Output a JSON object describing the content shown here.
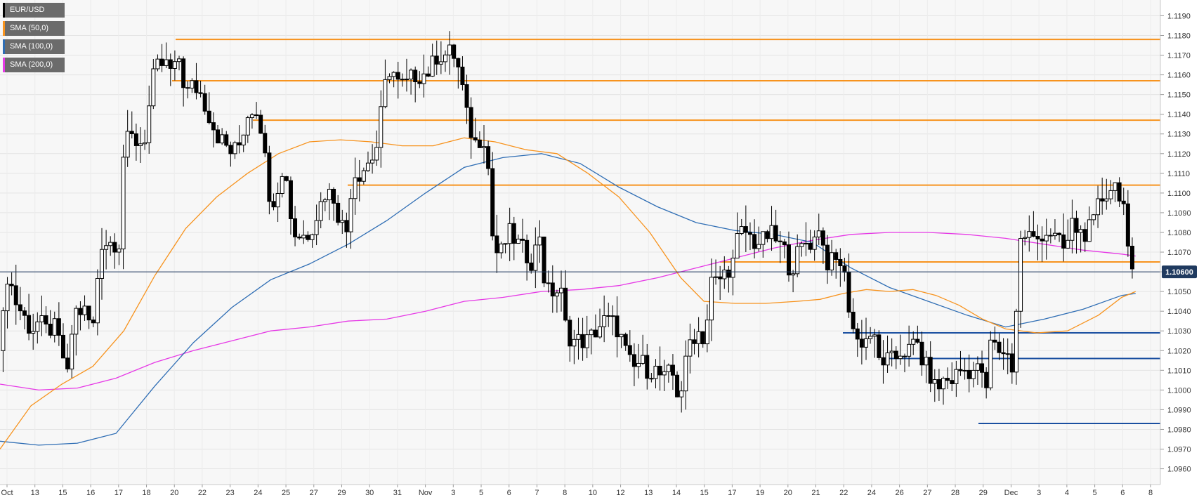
{
  "chart_data": {
    "type": "candlestick",
    "symbol": "EUR/USD",
    "y_range": [
      1.0952,
      1.1198
    ],
    "y_ticks": [
      "1.1190",
      "1.1180",
      "1.1170",
      "1.1160",
      "1.1150",
      "1.1140",
      "1.1130",
      "1.1120",
      "1.1110",
      "1.1100",
      "1.1090",
      "1.1080",
      "1.1070",
      "1.1060",
      "1.1050",
      "1.1040",
      "1.1030",
      "1.1020",
      "1.1010",
      "1.1000",
      "1.0990",
      "1.0980",
      "1.0970",
      "1.0960"
    ],
    "x_ticks": [
      "Oct",
      "13",
      "15",
      "16",
      "17",
      "18",
      "20",
      "22",
      "23",
      "24",
      "25",
      "27",
      "29",
      "30",
      "31",
      "Nov",
      "3",
      "5",
      "6",
      "7",
      "8",
      "10",
      "12",
      "13",
      "14",
      "15",
      "17",
      "19",
      "20",
      "21",
      "22",
      "24",
      "26",
      "27",
      "28",
      "29",
      "Dec",
      "3",
      "4",
      "5",
      "6",
      "8"
    ],
    "current_price": "1.10600",
    "legend": [
      {
        "label": "EUR/USD",
        "color": "#000000"
      },
      {
        "label": "SMA (50,0)",
        "color": "#f7931e"
      },
      {
        "label": "SMA (100,0)",
        "color": "#2e6db4"
      },
      {
        "label": "SMA (200,0)",
        "color": "#e639e6"
      }
    ],
    "resistance_levels": [
      1.1178,
      1.1157,
      1.1137,
      1.1104,
      1.1065
    ],
    "support_levels": [
      1.1029,
      1.1016,
      1.0983
    ],
    "close_path": [
      [
        0,
        1.102
      ],
      [
        10,
        1.106
      ],
      [
        20,
        1.1045
      ],
      [
        30,
        1.1038
      ],
      [
        40,
        1.103
      ],
      [
        50,
        1.1035
      ],
      [
        60,
        1.103
      ],
      [
        70,
        1.1032
      ],
      [
        80,
        1.102
      ],
      [
        88,
        1.1005
      ],
      [
        95,
        1.104
      ],
      [
        110,
        1.104
      ],
      [
        120,
        1.103
      ],
      [
        130,
        1.1075
      ],
      [
        145,
        1.1075
      ],
      [
        155,
        1.1075
      ],
      [
        160,
        1.1125
      ],
      [
        170,
        1.1128
      ],
      [
        180,
        1.1125
      ],
      [
        190,
        1.113
      ],
      [
        195,
        1.1155
      ],
      [
        205,
        1.1165
      ],
      [
        215,
        1.1165
      ],
      [
        225,
        1.116
      ],
      [
        230,
        1.1172
      ],
      [
        240,
        1.115
      ],
      [
        250,
        1.1155
      ],
      [
        260,
        1.115
      ],
      [
        270,
        1.114
      ],
      [
        280,
        1.113
      ],
      [
        290,
        1.1125
      ],
      [
        300,
        1.112
      ],
      [
        310,
        1.1125
      ],
      [
        320,
        1.114
      ],
      [
        330,
        1.1145
      ],
      [
        340,
        1.113
      ],
      [
        345,
        1.1105
      ],
      [
        352,
        1.1095
      ],
      [
        360,
        1.1105
      ],
      [
        370,
        1.111
      ],
      [
        378,
        1.108
      ],
      [
        390,
        1.1078
      ],
      [
        400,
        1.108
      ],
      [
        410,
        1.109
      ],
      [
        420,
        1.11
      ],
      [
        430,
        1.11
      ],
      [
        440,
        1.1085
      ],
      [
        450,
        1.108
      ],
      [
        455,
        1.111
      ],
      [
        465,
        1.111
      ],
      [
        475,
        1.1115
      ],
      [
        485,
        1.112
      ],
      [
        490,
        1.113
      ],
      [
        495,
        1.115
      ],
      [
        505,
        1.1165
      ],
      [
        515,
        1.1155
      ],
      [
        525,
        1.1155
      ],
      [
        535,
        1.116
      ],
      [
        545,
        1.116
      ],
      [
        555,
        1.1162
      ],
      [
        565,
        1.117
      ],
      [
        575,
        1.117
      ],
      [
        585,
        1.1172
      ],
      [
        595,
        1.116
      ],
      [
        605,
        1.1135
      ],
      [
        615,
        1.1125
      ],
      [
        625,
        1.113
      ],
      [
        632,
        1.111
      ],
      [
        638,
        1.107
      ],
      [
        648,
        1.107
      ],
      [
        658,
        1.108
      ],
      [
        668,
        1.1075
      ],
      [
        678,
        1.107
      ],
      [
        688,
        1.1065
      ],
      [
        698,
        1.108
      ],
      [
        705,
        1.105
      ],
      [
        715,
        1.105
      ],
      [
        725,
        1.105
      ],
      [
        732,
        1.103
      ],
      [
        740,
        1.1025
      ],
      [
        750,
        1.1025
      ],
      [
        760,
        1.1025
      ],
      [
        770,
        1.103
      ],
      [
        780,
        1.1035
      ],
      [
        790,
        1.1035
      ],
      [
        800,
        1.103
      ],
      [
        808,
        1.102
      ],
      [
        818,
        1.101
      ],
      [
        828,
        1.1015
      ],
      [
        838,
        1.101
      ],
      [
        848,
        1.101
      ],
      [
        858,
        1.1005
      ],
      [
        868,
        1.101
      ],
      [
        878,
        1.0995
      ],
      [
        885,
        1.101
      ],
      [
        892,
        1.1025
      ],
      [
        902,
        1.103
      ],
      [
        912,
        1.1025
      ],
      [
        918,
        1.1055
      ],
      [
        928,
        1.1055
      ],
      [
        938,
        1.106
      ],
      [
        948,
        1.1065
      ],
      [
        955,
        1.108
      ],
      [
        965,
        1.108
      ],
      [
        975,
        1.1075
      ],
      [
        985,
        1.1075
      ],
      [
        995,
        1.108
      ],
      [
        1005,
        1.1075
      ],
      [
        1015,
        1.107
      ],
      [
        1022,
        1.106
      ],
      [
        1032,
        1.107
      ],
      [
        1042,
        1.1075
      ],
      [
        1052,
        1.1075
      ],
      [
        1058,
        1.1085
      ],
      [
        1068,
        1.1065
      ],
      [
        1078,
        1.1065
      ],
      [
        1088,
        1.1065
      ],
      [
        1095,
        1.105
      ],
      [
        1100,
        1.1035
      ],
      [
        1108,
        1.1025
      ],
      [
        1118,
        1.1025
      ],
      [
        1128,
        1.103
      ],
      [
        1135,
        1.1015
      ],
      [
        1145,
        1.1015
      ],
      [
        1155,
        1.1015
      ],
      [
        1165,
        1.102
      ],
      [
        1175,
        1.102
      ],
      [
        1185,
        1.1025
      ],
      [
        1192,
        1.1015
      ],
      [
        1200,
        1.101
      ],
      [
        1210,
        1.1
      ],
      [
        1220,
        1.1005
      ],
      [
        1230,
        1.1005
      ],
      [
        1240,
        1.101
      ],
      [
        1250,
        1.101
      ],
      [
        1260,
        1.101
      ],
      [
        1270,
        1.101
      ],
      [
        1276,
        1.0995
      ],
      [
        1280,
        1.1025
      ],
      [
        1290,
        1.102
      ],
      [
        1300,
        1.102
      ],
      [
        1310,
        1.101
      ],
      [
        1318,
        1.1075
      ],
      [
        1328,
        1.108
      ],
      [
        1338,
        1.1075
      ],
      [
        1348,
        1.108
      ],
      [
        1358,
        1.108
      ],
      [
        1368,
        1.1075
      ],
      [
        1378,
        1.107
      ],
      [
        1385,
        1.1085
      ],
      [
        1395,
        1.108
      ],
      [
        1405,
        1.108
      ],
      [
        1415,
        1.1085
      ],
      [
        1420,
        1.1095
      ],
      [
        1430,
        1.11
      ],
      [
        1440,
        1.1105
      ],
      [
        1448,
        1.11
      ],
      [
        1455,
        1.109
      ],
      [
        1460,
        1.1055
      ],
      [
        1468,
        1.106
      ]
    ],
    "sma50_path": [
      [
        0,
        1.097
      ],
      [
        40,
        1.0992
      ],
      [
        80,
        1.1003
      ],
      [
        120,
        1.1012
      ],
      [
        160,
        1.103
      ],
      [
        200,
        1.1058
      ],
      [
        240,
        1.1082
      ],
      [
        280,
        1.1098
      ],
      [
        320,
        1.111
      ],
      [
        360,
        1.112
      ],
      [
        400,
        1.1126
      ],
      [
        440,
        1.1127
      ],
      [
        480,
        1.1126
      ],
      [
        520,
        1.1124
      ],
      [
        560,
        1.1124
      ],
      [
        600,
        1.1128
      ],
      [
        640,
        1.1126
      ],
      [
        680,
        1.1122
      ],
      [
        720,
        1.112
      ],
      [
        760,
        1.111
      ],
      [
        800,
        1.1098
      ],
      [
        840,
        1.108
      ],
      [
        880,
        1.1057
      ],
      [
        910,
        1.1045
      ],
      [
        950,
        1.1044
      ],
      [
        990,
        1.1044
      ],
      [
        1030,
        1.1045
      ],
      [
        1060,
        1.1046
      ],
      [
        1090,
        1.1049
      ],
      [
        1120,
        1.1051
      ],
      [
        1150,
        1.105
      ],
      [
        1180,
        1.1051
      ],
      [
        1210,
        1.1048
      ],
      [
        1240,
        1.1043
      ],
      [
        1270,
        1.1036
      ],
      [
        1300,
        1.1031
      ],
      [
        1340,
        1.1029
      ],
      [
        1380,
        1.103
      ],
      [
        1420,
        1.1038
      ],
      [
        1450,
        1.1047
      ],
      [
        1468,
        1.105
      ]
    ],
    "sma100_path": [
      [
        0,
        1.0974
      ],
      [
        50,
        1.0972
      ],
      [
        100,
        1.0973
      ],
      [
        150,
        1.0978
      ],
      [
        200,
        1.1002
      ],
      [
        250,
        1.1024
      ],
      [
        300,
        1.1042
      ],
      [
        350,
        1.1056
      ],
      [
        400,
        1.1064
      ],
      [
        450,
        1.1074
      ],
      [
        500,
        1.1086
      ],
      [
        550,
        1.11
      ],
      [
        600,
        1.1113
      ],
      [
        650,
        1.1118
      ],
      [
        700,
        1.112
      ],
      [
        750,
        1.1115
      ],
      [
        800,
        1.1103
      ],
      [
        850,
        1.1093
      ],
      [
        900,
        1.1085
      ],
      [
        950,
        1.1081
      ],
      [
        1000,
        1.1079
      ],
      [
        1050,
        1.1075
      ],
      [
        1100,
        1.1062
      ],
      [
        1150,
        1.1052
      ],
      [
        1200,
        1.1045
      ],
      [
        1250,
        1.1038
      ],
      [
        1300,
        1.1032
      ],
      [
        1350,
        1.1036
      ],
      [
        1400,
        1.1041
      ],
      [
        1450,
        1.1048
      ],
      [
        1468,
        1.1049
      ]
    ],
    "sma200_path": [
      [
        0,
        1.1003
      ],
      [
        50,
        1.1
      ],
      [
        100,
        1.1001
      ],
      [
        150,
        1.1006
      ],
      [
        200,
        1.1014
      ],
      [
        250,
        1.102
      ],
      [
        300,
        1.1025
      ],
      [
        350,
        1.103
      ],
      [
        400,
        1.1032
      ],
      [
        450,
        1.1035
      ],
      [
        500,
        1.1036
      ],
      [
        550,
        1.104
      ],
      [
        600,
        1.1045
      ],
      [
        650,
        1.1047
      ],
      [
        700,
        1.105
      ],
      [
        750,
        1.1051
      ],
      [
        800,
        1.1053
      ],
      [
        850,
        1.1057
      ],
      [
        900,
        1.1062
      ],
      [
        950,
        1.1067
      ],
      [
        1000,
        1.1072
      ],
      [
        1050,
        1.1076
      ],
      [
        1100,
        1.1079
      ],
      [
        1150,
        1.108
      ],
      [
        1200,
        1.108
      ],
      [
        1250,
        1.1079
      ],
      [
        1300,
        1.1077
      ],
      [
        1350,
        1.1074
      ],
      [
        1400,
        1.1071
      ],
      [
        1450,
        1.1069
      ],
      [
        1468,
        1.1068
      ]
    ]
  }
}
